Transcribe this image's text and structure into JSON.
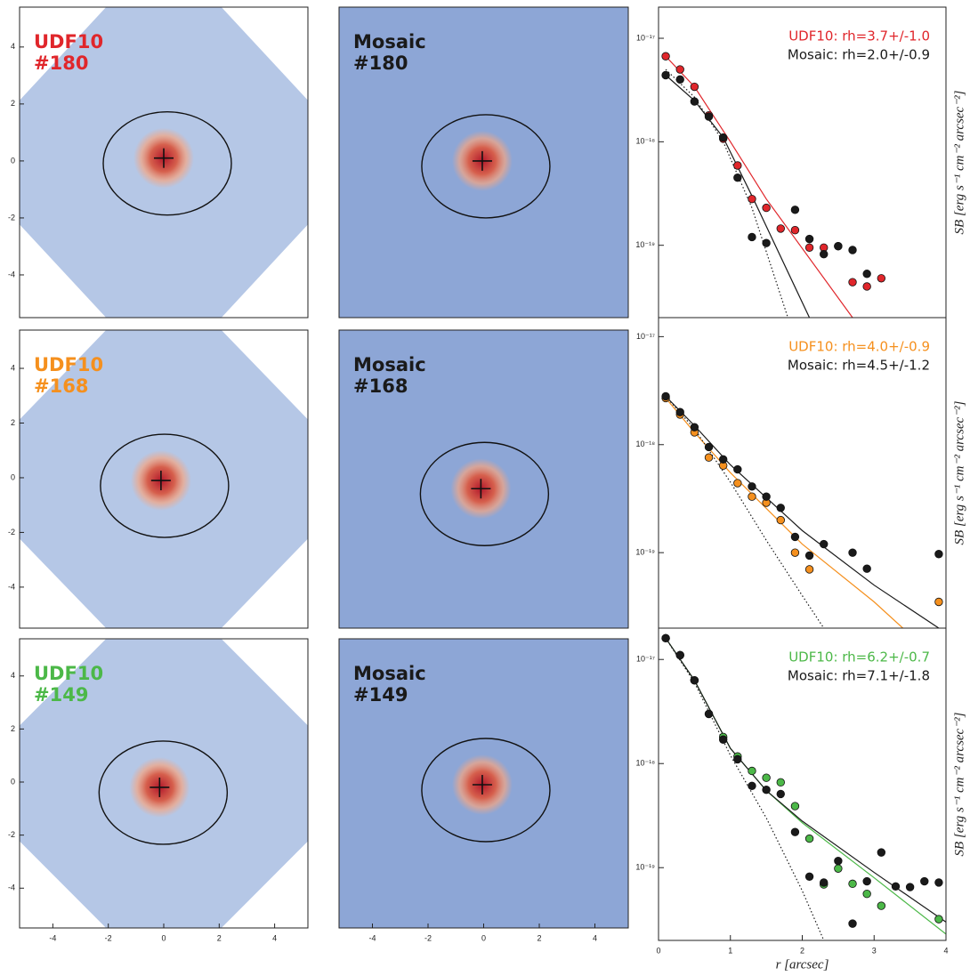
{
  "chart_data": [
    {
      "type": "image",
      "title": "UDF10",
      "subtitle": "#180",
      "title_color": "#e0262b",
      "shape": "octagon",
      "xlim": [
        -5.2,
        5.2
      ],
      "ylim": [
        -5.5,
        5.4
      ],
      "yticks": [
        -4,
        -2,
        0,
        2,
        4
      ],
      "center": [
        0,
        0.1
      ]
    },
    {
      "type": "image",
      "title": "Mosaic",
      "subtitle": "#180",
      "title_color": "#1a1a1a",
      "shape": "square",
      "xlim": [
        -5.2,
        5.2
      ],
      "ylim": [
        -5.5,
        5.4
      ],
      "center": [
        -0.05,
        0
      ]
    },
    {
      "type": "profile",
      "yscale": "log",
      "xlim": [
        0,
        4
      ],
      "ylim": [
        2e-20,
        2e-17
      ],
      "yticks": [
        {
          "value": 1e-17,
          "label": "10⁻¹⁷"
        },
        {
          "value": 1e-18,
          "label": "10⁻¹⁸"
        },
        {
          "value": 1e-19,
          "label": "10⁻¹⁹"
        }
      ],
      "ylabel": "SB [erg s⁻¹ cm⁻² arcsec⁻²]",
      "x": [
        0.1,
        0.3,
        0.5,
        0.7,
        0.9,
        1.1,
        1.3,
        1.5,
        1.7,
        1.9,
        2.1,
        2.3,
        2.5,
        2.7,
        2.9,
        3.1,
        3.3,
        3.5,
        3.7,
        3.9
      ],
      "series": [
        {
          "name": "UDF10: rh=3.7+/-1.0",
          "color": "#e0262b",
          "style": "points",
          "values": [
            6.7e-18,
            5e-18,
            3.4e-18,
            1.8e-18,
            1.07e-18,
            5.9e-19,
            2.8e-19,
            2.3e-19,
            1.45e-19,
            1.4e-19,
            9.5e-20,
            9.5e-20,
            9.8e-20,
            4.4e-20,
            4e-20,
            4.8e-20,
            null,
            null,
            null,
            null
          ]
        },
        {
          "name": "Mosaic: rh=2.0+/-0.9",
          "color": "#1a1a1a",
          "style": "points",
          "values": [
            4.4e-18,
            4e-18,
            2.45e-18,
            1.75e-18,
            1.1e-18,
            4.5e-19,
            1.2e-19,
            1.05e-19,
            null,
            2.2e-19,
            1.15e-19,
            8.2e-20,
            9.8e-20,
            9e-20,
            5.3e-20,
            null,
            null,
            null,
            null,
            null
          ]
        },
        {
          "color": "#e0262b",
          "style": "line",
          "x": [
            0.1,
            0.5,
            1.0,
            1.5,
            2.7
          ],
          "values": [
            6.7e-18,
            3.4e-18,
            1e-18,
            2.8e-19,
            2e-20
          ]
        },
        {
          "color": "#1a1a1a",
          "style": "line",
          "x": [
            0.1,
            0.5,
            0.9,
            1.3,
            2.1
          ],
          "values": [
            4.4e-18,
            2.5e-18,
            1.1e-18,
            3e-19,
            2e-20
          ]
        },
        {
          "color": "#1a1a1a",
          "style": "dotted",
          "x": [
            0.1,
            0.5,
            0.9,
            1.3,
            1.8
          ],
          "values": [
            5e-18,
            2.7e-18,
            1e-18,
            2.3e-19,
            2e-20
          ]
        }
      ]
    },
    {
      "type": "image",
      "title": "UDF10",
      "subtitle": "#168",
      "title_color": "#f5901e",
      "shape": "octagon",
      "xlim": [
        -5.2,
        5.2
      ],
      "ylim": [
        -5.5,
        5.4
      ],
      "yticks": [
        -4,
        -2,
        0,
        2,
        4
      ],
      "center": [
        -0.1,
        -0.1
      ]
    },
    {
      "type": "image",
      "title": "Mosaic",
      "subtitle": "#168",
      "title_color": "#1a1a1a",
      "shape": "square",
      "xlim": [
        -5.2,
        5.2
      ],
      "ylim": [
        -5.5,
        5.4
      ],
      "center": [
        -0.1,
        -0.4
      ]
    },
    {
      "type": "profile",
      "yscale": "log",
      "xlim": [
        0,
        4
      ],
      "ylim": [
        2e-20,
        1.5e-17
      ],
      "yticks": [
        {
          "value": 1e-17,
          "label": "10⁻¹⁷"
        },
        {
          "value": 1e-18,
          "label": "10⁻¹⁸"
        },
        {
          "value": 1e-19,
          "label": "10⁻¹⁹"
        }
      ],
      "ylabel": "SB [erg s⁻¹ cm⁻² arcsec⁻²]",
      "x": [
        0.1,
        0.3,
        0.5,
        0.7,
        0.9,
        1.1,
        1.3,
        1.5,
        1.7,
        1.9,
        2.1,
        2.3,
        2.5,
        2.7,
        2.9,
        3.1,
        3.3,
        3.5,
        3.7,
        3.9
      ],
      "series": [
        {
          "name": "UDF10: rh=4.0+/-0.9",
          "color": "#f5901e",
          "style": "points",
          "values": [
            2.7e-18,
            1.9e-18,
            1.3e-18,
            7.6e-19,
            6.4e-19,
            4.4e-19,
            3.3e-19,
            2.9e-19,
            2e-19,
            1e-19,
            7e-20,
            null,
            null,
            null,
            null,
            null,
            null,
            null,
            null,
            3.5e-20
          ]
        },
        {
          "name": "Mosaic: rh=4.5+/-1.2",
          "color": "#1a1a1a",
          "style": "points",
          "values": [
            2.8e-18,
            2e-18,
            1.45e-18,
            9.5e-19,
            7.3e-19,
            5.9e-19,
            4.1e-19,
            3.3e-19,
            2.6e-19,
            1.4e-19,
            9.4e-20,
            1.2e-19,
            null,
            1e-19,
            7.1e-20,
            null,
            null,
            null,
            null,
            9.7e-20
          ]
        },
        {
          "color": "#f5901e",
          "style": "line",
          "x": [
            0.1,
            0.5,
            1.0,
            2.0,
            3.0,
            3.4
          ],
          "values": [
            2.7e-18,
            1.3e-18,
            5.5e-19,
            1.2e-19,
            3.5e-20,
            2e-20
          ]
        },
        {
          "color": "#1a1a1a",
          "style": "line",
          "x": [
            0.1,
            0.5,
            1.0,
            2.0,
            3.0,
            3.9
          ],
          "values": [
            2.8e-18,
            1.5e-18,
            6.5e-19,
            1.6e-19,
            5e-20,
            2e-20
          ]
        },
        {
          "color": "#1a1a1a",
          "style": "dotted",
          "x": [
            0.1,
            0.5,
            1.0,
            1.5,
            2.0,
            2.3
          ],
          "values": [
            2.8e-18,
            1.4e-18,
            4.5e-19,
            1.3e-19,
            4e-20,
            2e-20
          ]
        }
      ]
    },
    {
      "type": "image",
      "title": "UDF10",
      "subtitle": "#149",
      "title_color": "#4cb848",
      "shape": "octagon",
      "xlim": [
        -5.2,
        5.2
      ],
      "ylim": [
        -5.5,
        5.4
      ],
      "xticks": [
        -4,
        -2,
        0,
        2,
        4
      ],
      "yticks": [
        -4,
        -2,
        0,
        2,
        4
      ],
      "center": [
        -0.15,
        -0.2
      ]
    },
    {
      "type": "image",
      "title": "Mosaic",
      "subtitle": "#149",
      "title_color": "#1a1a1a",
      "shape": "square",
      "xlim": [
        -5.2,
        5.2
      ],
      "ylim": [
        -5.5,
        5.4
      ],
      "xticks": [
        -4,
        -2,
        0,
        2,
        4
      ],
      "center": [
        -0.05,
        -0.1
      ]
    },
    {
      "type": "profile",
      "yscale": "log",
      "xlim": [
        0,
        4
      ],
      "ylim": [
        2e-20,
        2e-17
      ],
      "xticks": [
        0,
        1,
        2,
        3,
        4
      ],
      "yticks": [
        {
          "value": 1e-17,
          "label": "10⁻¹⁷"
        },
        {
          "value": 1e-18,
          "label": "10⁻¹⁸"
        },
        {
          "value": 1e-19,
          "label": "10⁻¹⁹"
        }
      ],
      "xlabel": "r [arcsec]",
      "ylabel": "SB [erg s⁻¹ cm⁻² arcsec⁻²]",
      "x": [
        0.1,
        0.3,
        0.5,
        0.7,
        0.9,
        1.1,
        1.3,
        1.5,
        1.7,
        1.9,
        2.1,
        2.3,
        2.5,
        2.7,
        2.9,
        3.1,
        3.3,
        3.5,
        3.7,
        3.9
      ],
      "series": [
        {
          "name": "UDF10: rh=6.2+/-0.7",
          "color": "#4cb848",
          "style": "points",
          "values": [
            1.6e-17,
            1.1e-17,
            6.3e-18,
            3e-18,
            1.8e-18,
            1.17e-18,
            8.5e-19,
            7.3e-19,
            6.6e-19,
            3.9e-19,
            1.9e-19,
            6.9e-20,
            9.8e-20,
            7e-20,
            5.6e-20,
            4.3e-20,
            null,
            null,
            null,
            3.2e-20
          ]
        },
        {
          "name": "Mosaic: rh=7.1+/-1.8",
          "color": "#1a1a1a",
          "style": "points",
          "values": [
            1.6e-17,
            1.1e-17,
            6.3e-18,
            3e-18,
            1.7e-18,
            1.1e-18,
            6.1e-19,
            5.6e-19,
            5.1e-19,
            2.2e-19,
            8.2e-20,
            7.2e-20,
            1.16e-19,
            2.9e-20,
            7.4e-20,
            1.4e-19,
            6.6e-20,
            6.5e-20,
            7.4e-20,
            7.2e-20
          ]
        },
        {
          "color": "#4cb848",
          "style": "line",
          "x": [
            0.1,
            0.5,
            1.0,
            1.5,
            2.0,
            3.0,
            4.0
          ],
          "values": [
            1.6e-17,
            6.3e-18,
            1.4e-18,
            5.5e-19,
            2.7e-19,
            8e-20,
            2.3e-20
          ]
        },
        {
          "color": "#1a1a1a",
          "style": "line",
          "x": [
            0.1,
            0.5,
            1.0,
            1.5,
            2.0,
            3.0,
            4.0
          ],
          "values": [
            1.6e-17,
            6.3e-18,
            1.4e-18,
            5.5e-19,
            2.8e-19,
            9e-20,
            3e-20
          ]
        },
        {
          "color": "#1a1a1a",
          "style": "dotted",
          "x": [
            0.1,
            0.5,
            1.0,
            1.5,
            2.0,
            2.3
          ],
          "values": [
            1.6e-17,
            6e-18,
            1.2e-18,
            3e-19,
            6e-20,
            2e-20
          ]
        }
      ]
    }
  ]
}
